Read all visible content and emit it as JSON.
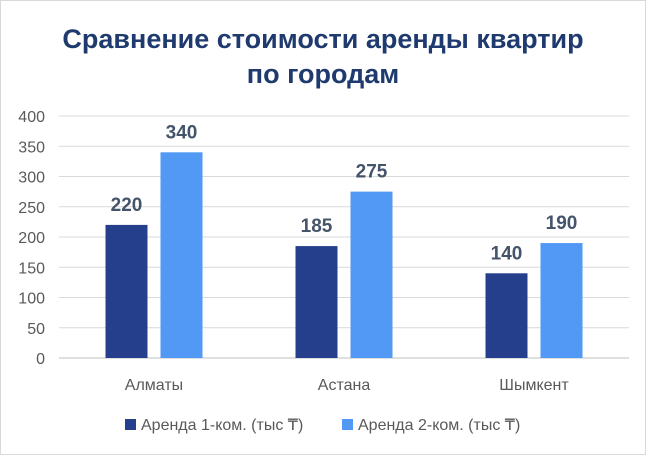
{
  "chart_data": {
    "type": "bar",
    "title_lines": [
      "Сравнение стоимости аренды квартир",
      "по городам"
    ],
    "categories": [
      "Алматы",
      "Астана",
      "Шымкент"
    ],
    "series": [
      {
        "name": "Аренда 1-ком. (тыс ₸)",
        "color": "#263f8c",
        "values": [
          220,
          185,
          140
        ]
      },
      {
        "name": "Аренда 2-ком. (тыс ₸)",
        "color": "#5199f5",
        "values": [
          340,
          275,
          190
        ]
      }
    ],
    "ylim": [
      0,
      400
    ],
    "yticks": [
      0,
      50,
      100,
      150,
      200,
      250,
      300,
      350,
      400
    ],
    "grid": true,
    "legend_position": "bottom",
    "data_labels": true
  }
}
